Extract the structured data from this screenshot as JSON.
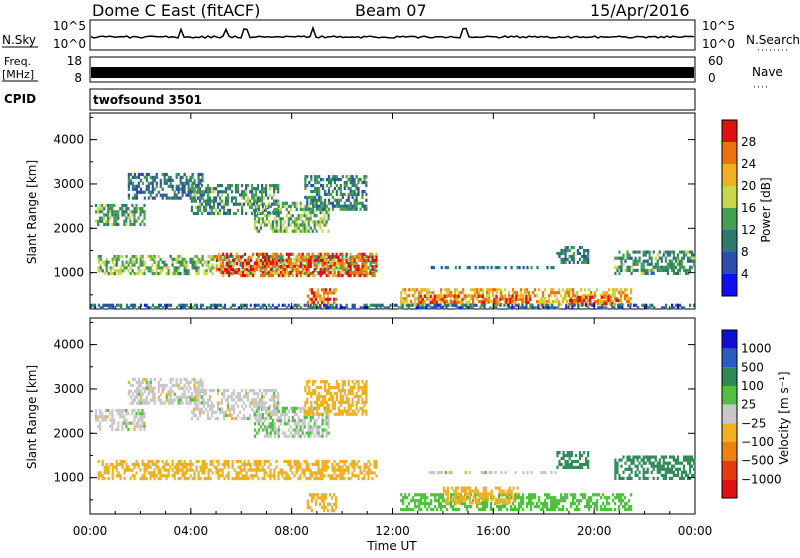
{
  "header": {
    "station": "Dome C East (fitACF)",
    "beam": "Beam 07",
    "date": "15/Apr/2016"
  },
  "top_panels": {
    "nsky_label": "N.Sky",
    "nsky_ticks": [
      "10^5",
      "10^0"
    ],
    "nsearch_label": "N.Search",
    "nsearch_ticks": [
      "10^5",
      "10^0"
    ],
    "freq_label": "Freq.",
    "freq_unit": "[MHz]",
    "freq_ticks": [
      "18",
      "8"
    ],
    "nave_label": "Nave",
    "nave_ticks": [
      "60",
      "0"
    ],
    "cpid_label": "CPID",
    "cpid_value": "twofsound 3501"
  },
  "chart_data": [
    {
      "type": "heatmap",
      "name": "power-panel",
      "ylabel": "Slant Range [km]",
      "xlabel": "",
      "x_ticks": [
        "00:00",
        "04:00",
        "08:00",
        "12:00",
        "16:00",
        "20:00",
        "00:00"
      ],
      "y_ticks": [
        "1000",
        "2000",
        "3000",
        "4000"
      ],
      "xlim_hours": [
        0,
        24
      ],
      "ylim_km": [
        180,
        4600
      ],
      "colorbar": {
        "label": "Power [dB]",
        "range": [
          0,
          32
        ],
        "ticks": [
          "28",
          "24",
          "20",
          "16",
          "12",
          "8",
          "4"
        ],
        "colors": [
          "#1010ee",
          "#2a4fb0",
          "#2f7a6e",
          "#43a04e",
          "#c8d84a",
          "#f0b020",
          "#f07010",
          "#e01010"
        ]
      },
      "regions": [
        {
          "t0": 0.3,
          "t1": 11.4,
          "r0": 950,
          "r1": 1400,
          "value": 15
        },
        {
          "t0": 5.0,
          "t1": 11.4,
          "r0": 900,
          "r1": 1450,
          "value": 27
        },
        {
          "t0": 8.6,
          "t1": 9.8,
          "r0": 220,
          "r1": 650,
          "value": 26
        },
        {
          "t0": 0.2,
          "t1": 2.2,
          "r0": 2050,
          "r1": 2550,
          "value": 13
        },
        {
          "t0": 1.5,
          "t1": 4.5,
          "r0": 2650,
          "r1": 3250,
          "value": 9
        },
        {
          "t0": 4.0,
          "t1": 7.5,
          "r0": 2300,
          "r1": 3000,
          "value": 12
        },
        {
          "t0": 6.5,
          "t1": 9.5,
          "r0": 1900,
          "r1": 2600,
          "value": 15
        },
        {
          "t0": 8.5,
          "t1": 11.0,
          "r0": 2400,
          "r1": 3200,
          "value": 11
        },
        {
          "t0": 12.3,
          "t1": 21.5,
          "r0": 250,
          "r1": 650,
          "value": 22
        },
        {
          "t0": 13.0,
          "t1": 17.5,
          "r0": 300,
          "r1": 500,
          "value": 28
        },
        {
          "t0": 19.0,
          "t1": 21.0,
          "r0": 260,
          "r1": 480,
          "value": 29
        },
        {
          "t0": 13.2,
          "t1": 18.5,
          "r0": 1050,
          "r1": 1150,
          "value": 9
        },
        {
          "t0": 18.5,
          "t1": 19.8,
          "r0": 1200,
          "r1": 1600,
          "value": 10
        },
        {
          "t0": 20.8,
          "t1": 24.0,
          "r0": 950,
          "r1": 1500,
          "value": 12
        },
        {
          "t0": 0.0,
          "t1": 24.0,
          "r0": 180,
          "r1": 300,
          "value": 8
        }
      ]
    },
    {
      "type": "heatmap",
      "name": "velocity-panel",
      "ylabel": "Slant Range [km]",
      "xlabel": "Time UT",
      "x_ticks": [
        "00:00",
        "04:00",
        "08:00",
        "12:00",
        "16:00",
        "20:00",
        "00:00"
      ],
      "y_ticks": [
        "1000",
        "2000",
        "3000",
        "4000"
      ],
      "xlim_hours": [
        0,
        24
      ],
      "ylim_km": [
        180,
        4600
      ],
      "colorbar": {
        "label": "Velocity [m s⁻¹]",
        "ticks": [
          "1000",
          "500",
          "100",
          "25",
          "−25",
          "−100",
          "−500",
          "−1000"
        ],
        "colors": [
          "#1010d0",
          "#2a5cc0",
          "#2f8a5a",
          "#50c040",
          "#c8c8c8",
          "#f0b020",
          "#f08010",
          "#e83a10",
          "#e01010"
        ]
      },
      "regions": [
        {
          "t0": 0.3,
          "t1": 11.4,
          "r0": 950,
          "r1": 1400,
          "value": -60
        },
        {
          "t0": 8.6,
          "t1": 9.8,
          "r0": 220,
          "r1": 650,
          "value": -60
        },
        {
          "t0": 0.2,
          "t1": 2.2,
          "r0": 2050,
          "r1": 2550,
          "value": 0
        },
        {
          "t0": 1.5,
          "t1": 4.5,
          "r0": 2650,
          "r1": 3250,
          "value": 0
        },
        {
          "t0": 4.0,
          "t1": 7.5,
          "r0": 2300,
          "r1": 3000,
          "value": 0
        },
        {
          "t0": 6.5,
          "t1": 9.5,
          "r0": 1900,
          "r1": 2600,
          "value": 20
        },
        {
          "t0": 8.5,
          "t1": 11.0,
          "r0": 2400,
          "r1": 3200,
          "value": -60
        },
        {
          "t0": 12.3,
          "t1": 21.5,
          "r0": 250,
          "r1": 650,
          "value": 60
        },
        {
          "t0": 14.0,
          "t1": 17.0,
          "r0": 400,
          "r1": 800,
          "value": -60
        },
        {
          "t0": 13.2,
          "t1": 18.5,
          "r0": 1050,
          "r1": 1150,
          "value": 0
        },
        {
          "t0": 18.5,
          "t1": 19.8,
          "r0": 1200,
          "r1": 1600,
          "value": 200
        },
        {
          "t0": 20.8,
          "t1": 24.0,
          "r0": 950,
          "r1": 1500,
          "value": 200
        }
      ]
    }
  ]
}
